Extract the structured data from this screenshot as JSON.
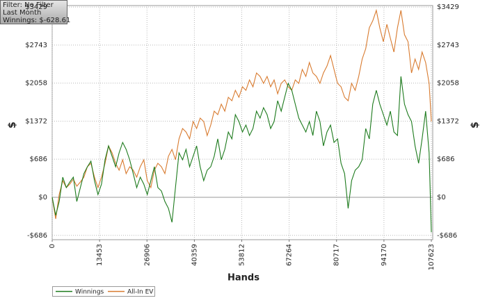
{
  "info": {
    "lines": [
      "Filter: No Filter",
      "Last Month",
      "Winnings: $-628.61"
    ]
  },
  "chart_data": {
    "type": "line",
    "xlabel": "Hands",
    "ylabel": "$",
    "y2label": "$",
    "x": [
      0,
      1000,
      2000,
      3000,
      4000,
      5000,
      6000,
      7000,
      8000,
      9000,
      10000,
      11000,
      12000,
      13000,
      14000,
      15000,
      16000,
      17000,
      18000,
      19000,
      20000,
      21000,
      22000,
      23000,
      24000,
      25000,
      26000,
      27000,
      28000,
      29000,
      30000,
      31000,
      32000,
      33000,
      34000,
      35000,
      36000,
      37000,
      38000,
      39000,
      40000,
      41000,
      42000,
      43000,
      44000,
      45000,
      46000,
      47000,
      48000,
      49000,
      50000,
      51000,
      52000,
      53000,
      54000,
      55000,
      56000,
      57000,
      58000,
      59000,
      60000,
      61000,
      62000,
      63000,
      64000,
      65000,
      66000,
      67000,
      68000,
      69000,
      70000,
      71000,
      72000,
      73000,
      74000,
      75000,
      76000,
      77000,
      78000,
      79000,
      80000,
      81000,
      82000,
      83000,
      84000,
      85000,
      86000,
      87000,
      88000,
      89000,
      90000,
      91000,
      92000,
      93000,
      94000,
      95000,
      96000,
      97000,
      98000,
      99000,
      100000,
      101000,
      102000,
      103000,
      104000,
      105000,
      106000,
      107000,
      107623
    ],
    "series": [
      {
        "name": "Winnings",
        "color": "#1c7a1c",
        "values": [
          0,
          -326,
          -75,
          363,
          175,
          275,
          363,
          -75,
          175,
          426,
          551,
          651,
          300,
          50,
          238,
          676,
          926,
          739,
          551,
          801,
          989,
          864,
          676,
          426,
          175,
          363,
          238,
          50,
          300,
          551,
          175,
          113,
          -75,
          -200,
          -451,
          175,
          801,
          676,
          864,
          551,
          739,
          926,
          551,
          300,
          488,
          551,
          739,
          1052,
          676,
          864,
          1177,
          1052,
          1490,
          1365,
          1177,
          1302,
          1114,
          1239,
          1552,
          1427,
          1615,
          1490,
          1239,
          1365,
          1740,
          1552,
          1803,
          2053,
          1928,
          1678,
          1427,
          1302,
          1177,
          1365,
          1114,
          1552,
          1365,
          926,
          1177,
          1302,
          989,
          1052,
          613,
          426,
          -200,
          300,
          488,
          551,
          676,
          1239,
          1052,
          1678,
          1928,
          1678,
          1490,
          1302,
          1552,
          1177,
          1114,
          2178,
          1678,
          1490,
          1365,
          926,
          613,
          1052,
          1552,
          801,
          -628.61
        ]
      },
      {
        "name": "All-In EV",
        "color": "#d87a2e",
        "values": [
          0,
          -388,
          50,
          300,
          175,
          238,
          326,
          200,
          275,
          363,
          551,
          613,
          363,
          175,
          363,
          613,
          926,
          801,
          613,
          488,
          676,
          426,
          551,
          488,
          363,
          551,
          676,
          300,
          175,
          488,
          613,
          551,
          426,
          739,
          864,
          676,
          1052,
          1239,
          1177,
          1052,
          1365,
          1239,
          1427,
          1365,
          1114,
          1302,
          1552,
          1490,
          1678,
          1552,
          1803,
          1740,
          1928,
          1803,
          1991,
          1928,
          2116,
          1991,
          2241,
          2178,
          2053,
          2178,
          1991,
          2116,
          1865,
          2053,
          2116,
          1991,
          1928,
          2116,
          2053,
          2304,
          2178,
          2429,
          2241,
          2178,
          2053,
          2241,
          2366,
          2554,
          2304,
          2053,
          1991,
          1803,
          1740,
          2053,
          1928,
          2178,
          2491,
          2679,
          3055,
          3181,
          3368,
          3055,
          2804,
          3117,
          2867,
          2617,
          3055,
          3368,
          2930,
          2804,
          2241,
          2491,
          2304,
          2617,
          2429,
          2053,
          1365
        ]
      }
    ],
    "xlim": [
      0,
      107623
    ],
    "xticks": [
      0,
      13453,
      26906,
      40359,
      53812,
      67264,
      80717,
      94170,
      107623
    ],
    "ylim": [
      -764,
      3455
    ],
    "yticks": [
      {
        "value": -686,
        "label": "-$686"
      },
      {
        "value": 0,
        "label": "$0"
      },
      {
        "value": 686,
        "label": "$686"
      },
      {
        "value": 1372,
        "label": "$1372"
      },
      {
        "value": 2058,
        "label": "$2058"
      },
      {
        "value": 2743,
        "label": "$2743"
      },
      {
        "value": 3429,
        "label": "$3429"
      }
    ],
    "grid": true
  }
}
